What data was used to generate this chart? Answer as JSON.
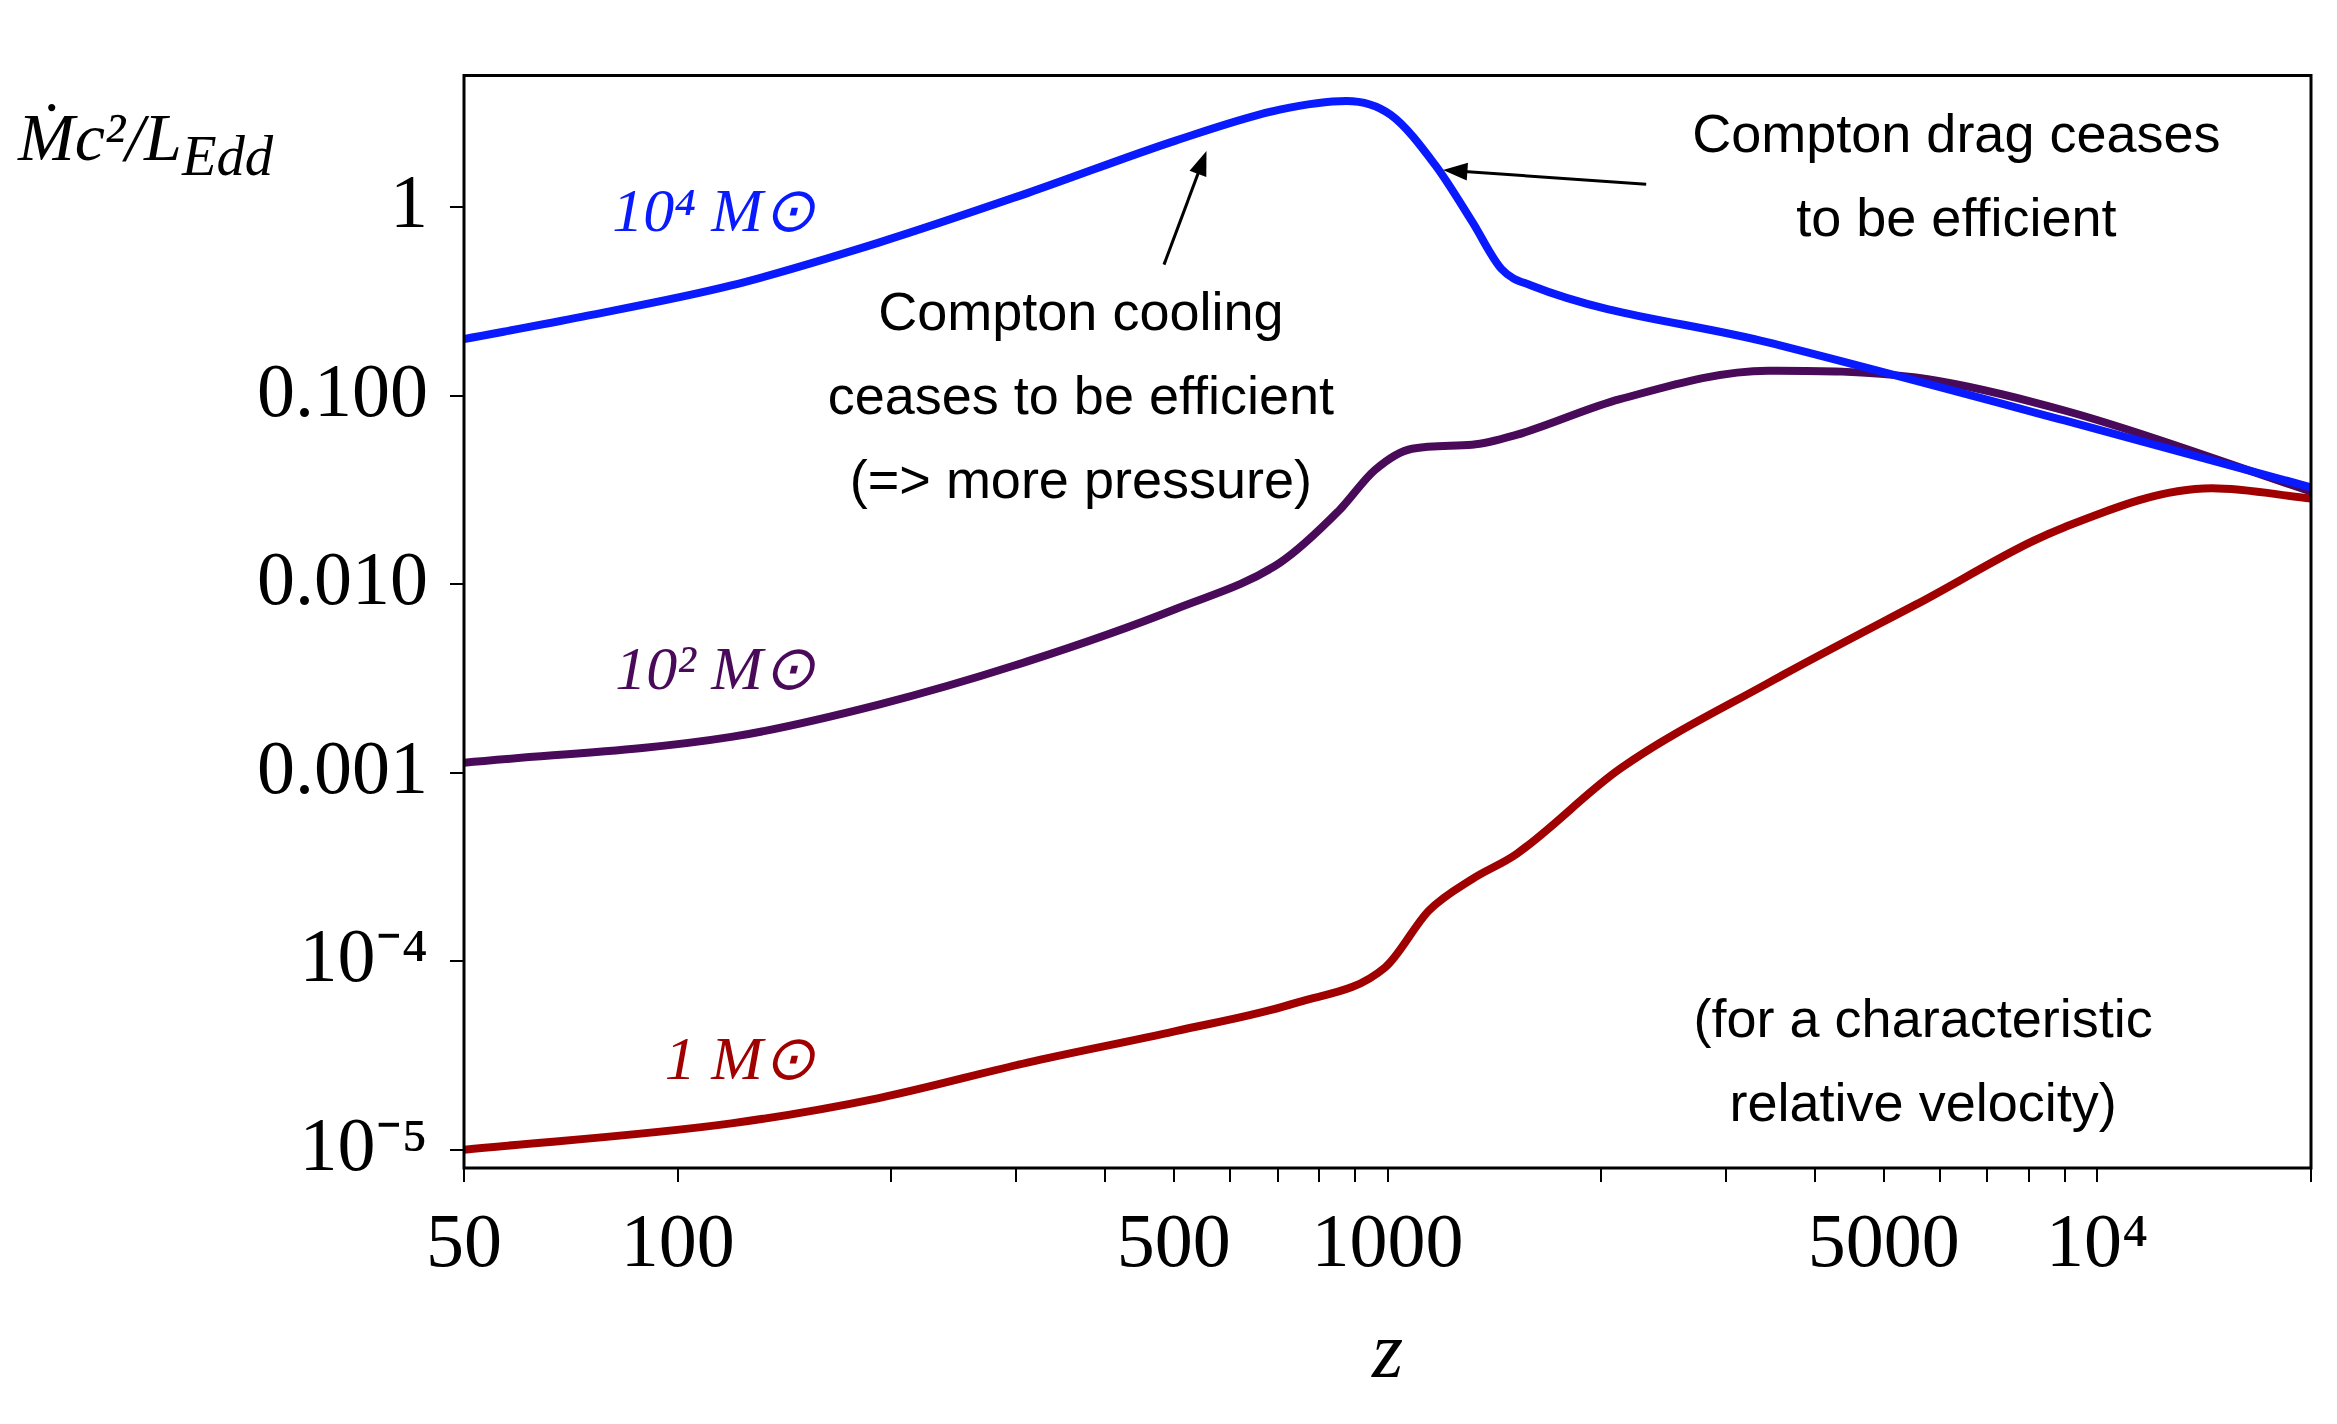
{
  "chart_data": {
    "type": "line",
    "xlabel": "z",
    "ylabel": "Ṁc²/L$_{Edd}$",
    "log": "xy",
    "grid": false,
    "legend": false,
    "line_style": "solid",
    "marker": "none",
    "xlim": [
      50,
      20000
    ],
    "ylim": [
      8e-06,
      5
    ],
    "xticks": [
      50,
      100,
      {
        "value": 200,
        "label": null
      },
      {
        "value": 300,
        "label": null
      },
      {
        "value": 400,
        "label": null
      },
      500,
      {
        "value": 600,
        "label": null
      },
      {
        "value": 700,
        "label": null
      },
      {
        "value": 800,
        "label": null
      },
      {
        "value": 900,
        "label": null
      },
      1000,
      {
        "value": 2000,
        "label": null
      },
      {
        "value": 3000,
        "label": null
      },
      {
        "value": 4000,
        "label": null
      },
      5000,
      {
        "value": 6000,
        "label": null
      },
      {
        "value": 7000,
        "label": null
      },
      {
        "value": 8000,
        "label": null
      },
      {
        "value": 9000,
        "label": null
      },
      {
        "value": 10000,
        "label": "10⁴"
      },
      {
        "value": 20000,
        "label": null
      }
    ],
    "yticks": [
      1,
      {
        "value": 0.1,
        "label": "0.100"
      },
      {
        "value": 0.01,
        "label": "0.010"
      },
      {
        "value": 0.001,
        "label": "0.001"
      },
      {
        "value": 0.0001,
        "label": "10⁻⁴"
      },
      {
        "value": 1e-05,
        "label": "10⁻⁵"
      }
    ],
    "series": [
      {
        "name": "10⁴ M⊙",
        "color": "#0a1aff",
        "x": [
          50,
          73.5,
          119,
          192,
          311,
          503,
          705,
          875,
          1010,
          1167,
          1316,
          1448,
          1594,
          3436,
          8990,
          20000
        ],
        "values": [
          0.2,
          0.263,
          0.385,
          0.65,
          1.19,
          2.26,
          3.3,
          3.67,
          3.1,
          1.68,
          0.84,
          0.47,
          0.385,
          0.192,
          0.074,
          0.0327
        ]
      },
      {
        "name": "10² M⊙",
        "color": "#4a0a5a",
        "x": [
          50,
          119,
          192,
          311,
          503,
          705,
          856,
          960,
          1083,
          1316,
          1518,
          2126,
          3436,
          5550,
          8990,
          20000
        ],
        "values": [
          0.00113,
          0.00155,
          0.0023,
          0.0039,
          0.0074,
          0.013,
          0.0248,
          0.0404,
          0.0524,
          0.055,
          0.062,
          0.096,
          0.136,
          0.125,
          0.0836,
          0.0311
        ]
      },
      {
        "name": "1 M⊙",
        "color": "#a00000",
        "x": [
          50,
          119,
          192,
          311,
          503,
          741,
          993,
          1144,
          1316,
          1518,
          2126,
          3436,
          5550,
          8990,
          14500,
          20000
        ],
        "values": [
          1e-05,
          1.38e-05,
          1.88e-05,
          2.9e-05,
          4.26e-05,
          6e-05,
          9.3e-05,
          0.000186,
          0.000273,
          0.00037,
          0.00105,
          0.00299,
          0.0078,
          0.0201,
          0.0323,
          0.0285
        ]
      }
    ],
    "annotations": [
      "Compton cooling\nceases to be efficient\n(=> more pressure)",
      "Compton drag ceases\nto be efficient",
      "(for a characteristic\nrelative velocity)"
    ]
  }
}
